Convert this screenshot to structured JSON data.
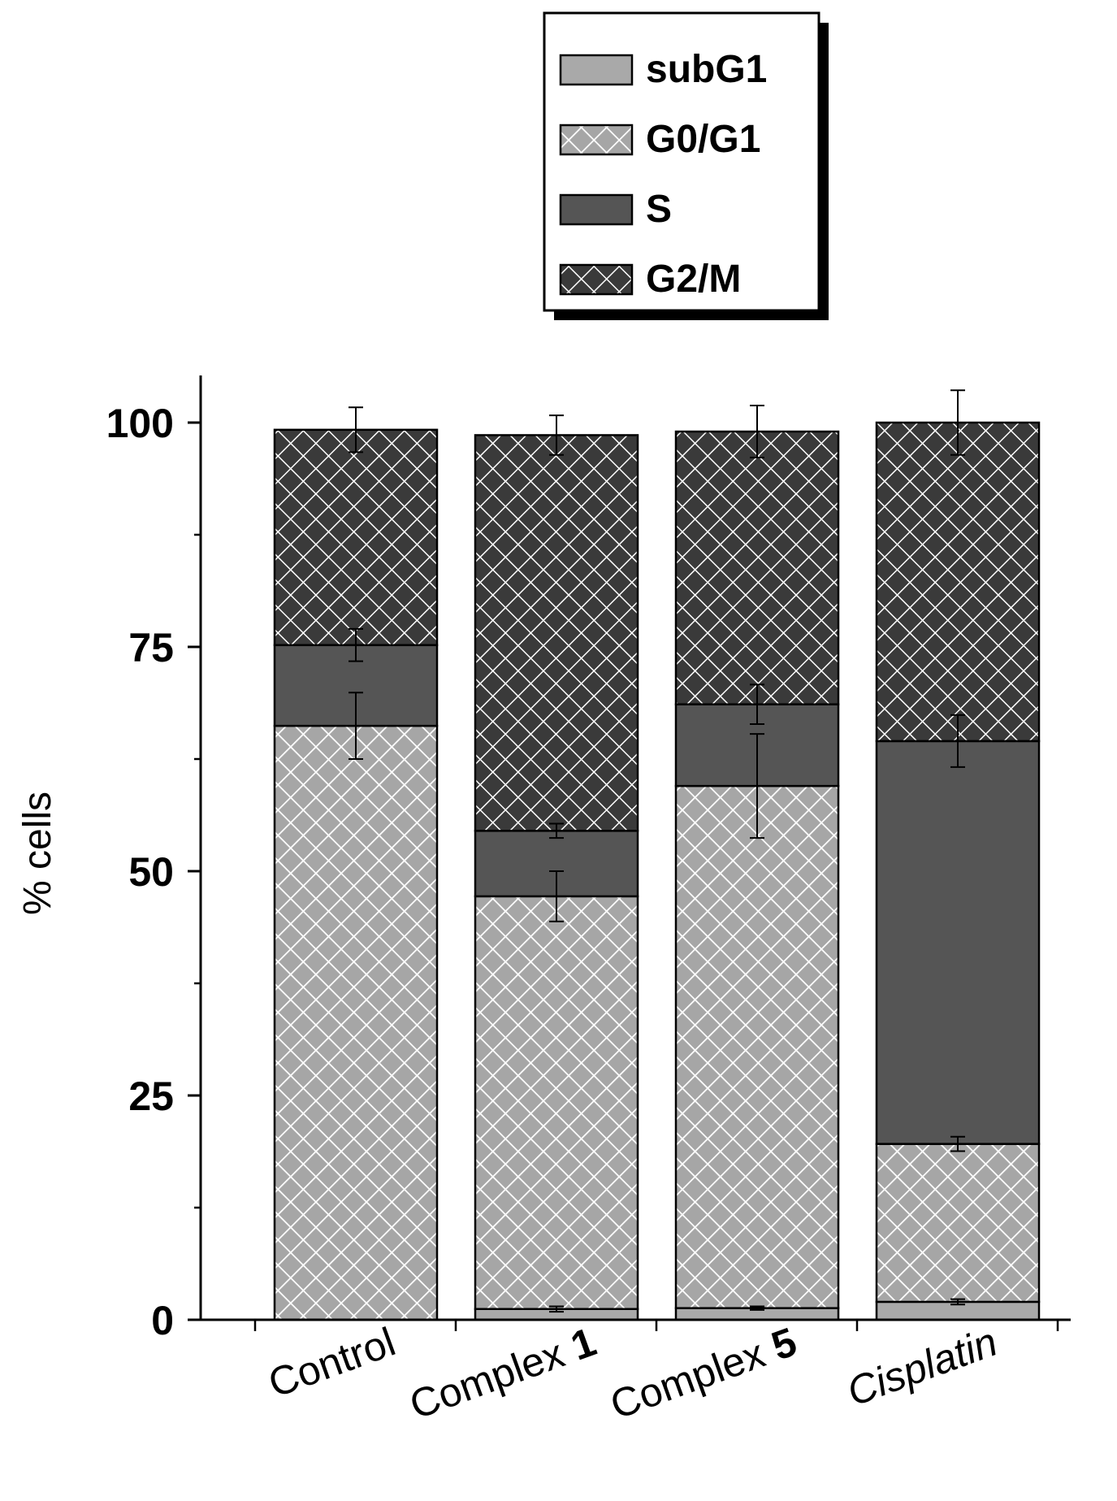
{
  "chart_data": {
    "type": "bar",
    "stacked": true,
    "categories": [
      {
        "name": "Control",
        "suffix": ""
      },
      {
        "name": "Complex ",
        "suffix": "1"
      },
      {
        "name": "Complex ",
        "suffix": "5"
      },
      {
        "name": "Cisplatin",
        "suffix": ""
      }
    ],
    "series": [
      {
        "name": "subG1",
        "pattern": "solid-light",
        "values": [
          0,
          1.2,
          1.3,
          2.0
        ],
        "errors": [
          0,
          0.3,
          0.2,
          0.3
        ]
      },
      {
        "name": "G0/G1",
        "pattern": "crosshatch-light",
        "values": [
          66.2,
          46.0,
          58.2,
          17.6
        ],
        "errors": [
          3.7,
          2.8,
          5.8,
          0.8
        ]
      },
      {
        "name": "S",
        "pattern": "solid-dark",
        "values": [
          9.0,
          7.3,
          9.1,
          44.9
        ],
        "errors": [
          1.8,
          0.8,
          2.2,
          2.9
        ]
      },
      {
        "name": "G2/M",
        "pattern": "crosshatch-dark",
        "values": [
          24.0,
          44.1,
          30.4,
          35.5
        ],
        "errors": [
          2.5,
          2.2,
          2.9,
          3.6
        ]
      }
    ],
    "ylabel": "% cells",
    "xlabel": "",
    "ylim": [
      0,
      100
    ],
    "yticks": [
      0,
      25,
      50,
      75,
      100
    ],
    "grid": false,
    "legend_position": "top"
  },
  "colors": {
    "solid_light": "#a9a9a9",
    "crosshatch_light_bg": "#a6a6a6",
    "solid_dark": "#555555",
    "crosshatch_dark_bg": "#3a3a3a",
    "hatch_line": "#ffffff"
  }
}
